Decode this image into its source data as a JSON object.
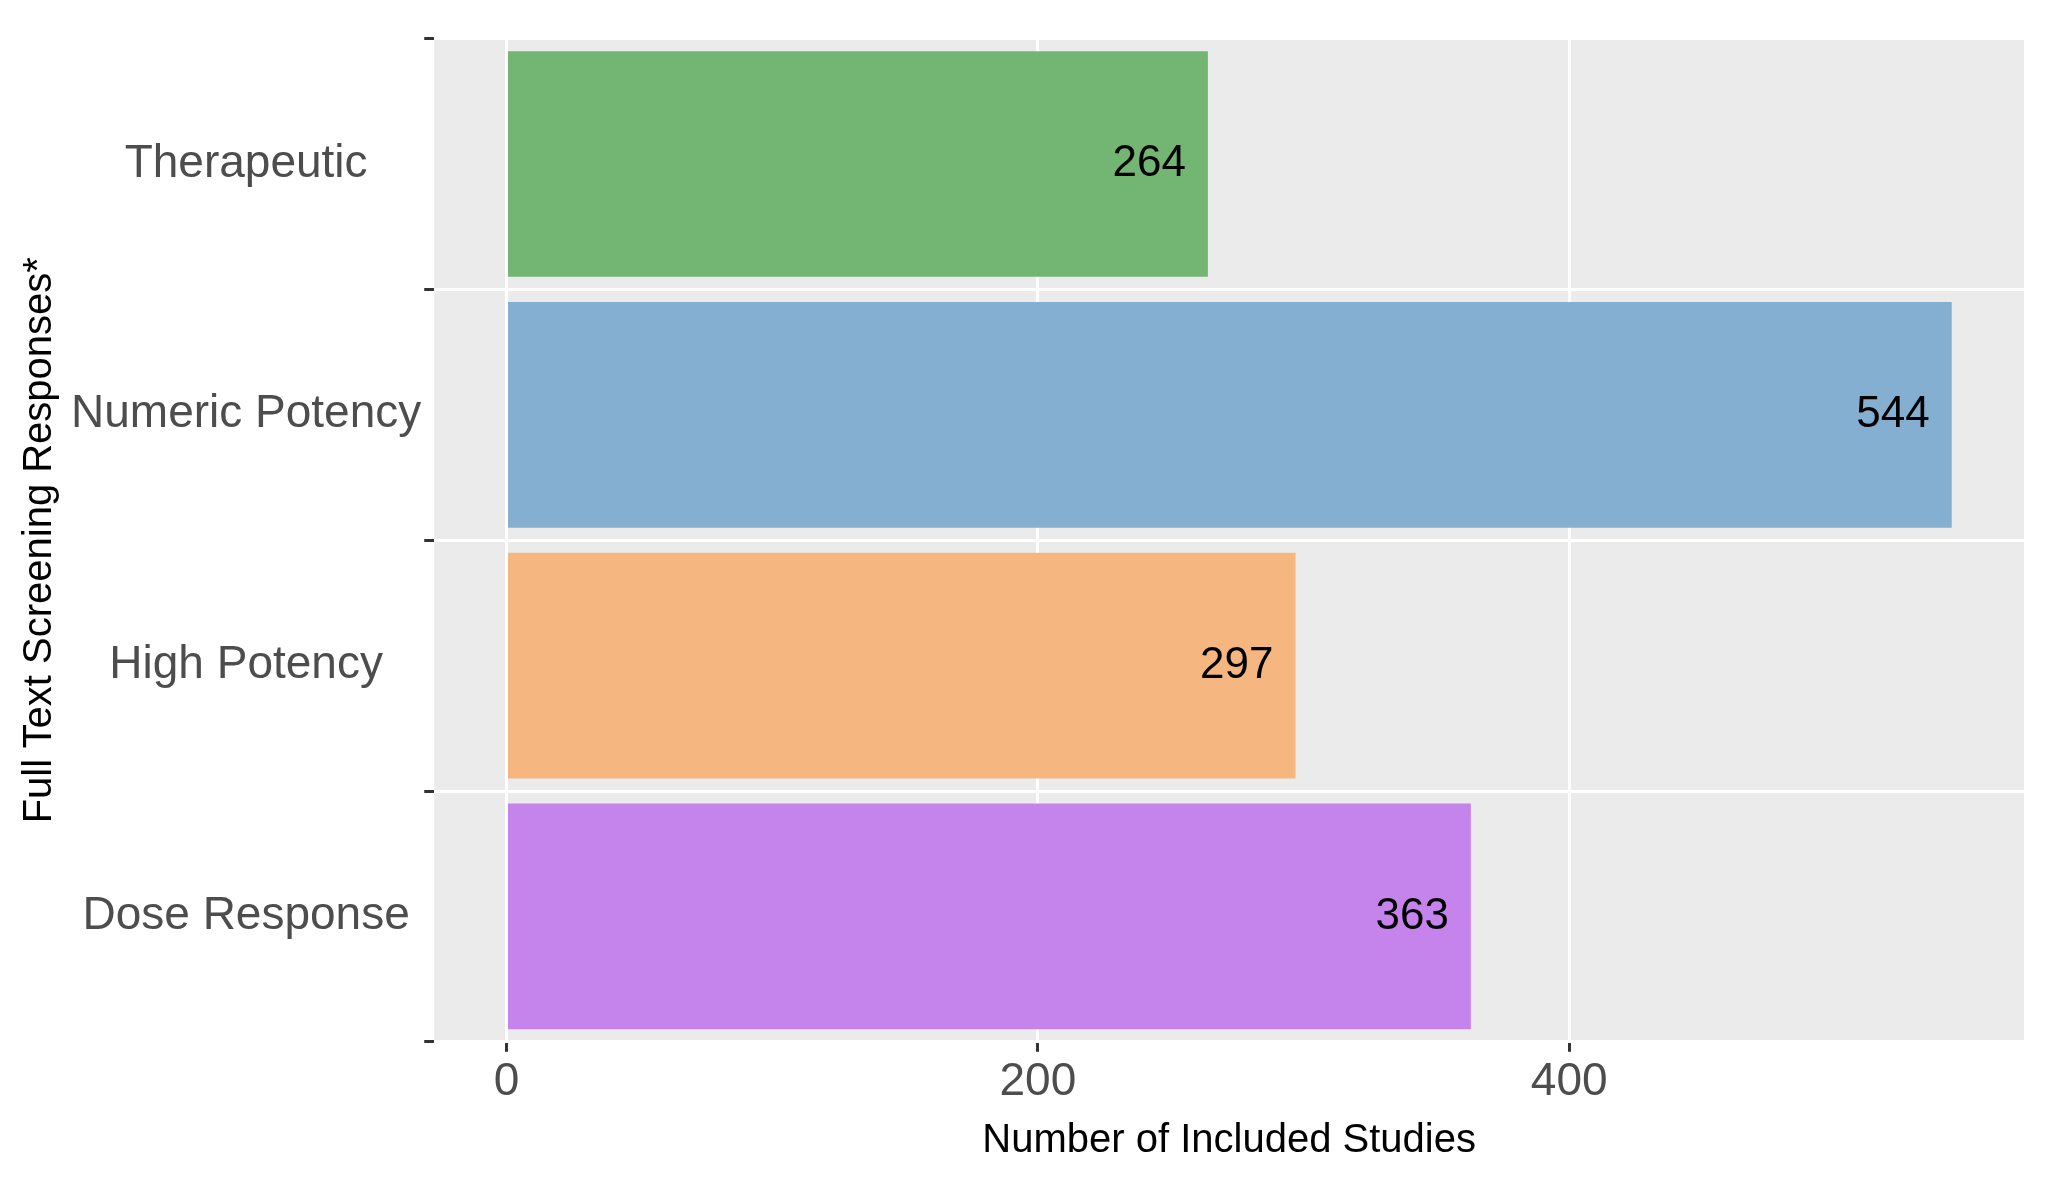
{
  "chart_data": {
    "type": "bar",
    "orientation": "horizontal",
    "xlabel": "Number of Included Studies",
    "ylabel": "Full Text Screening Responses*",
    "categories": [
      "Therapeutic",
      "Numeric Potency",
      "High Potency",
      "Dose Response"
    ],
    "values": [
      264,
      544,
      297,
      363
    ],
    "colors": [
      "#73b573",
      "#85afd0",
      "#f5b67f",
      "#c583ec"
    ],
    "xlim": [
      -27.2,
      571.2
    ],
    "xticks": [
      0,
      200,
      400
    ],
    "grid": true,
    "data_labels": true,
    "legend": false
  }
}
